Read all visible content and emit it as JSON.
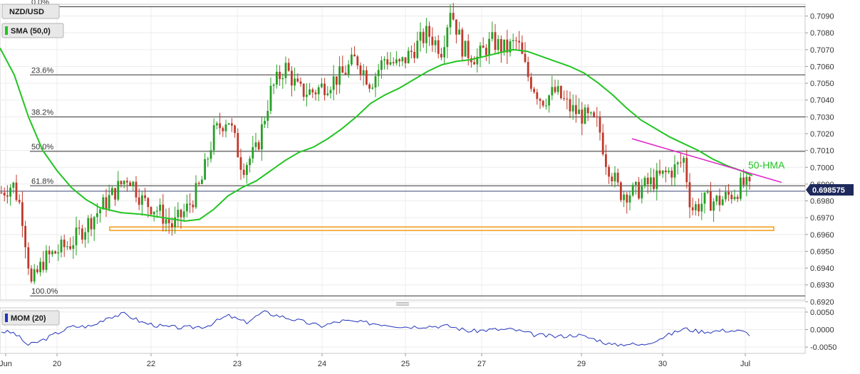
{
  "chart_data": {
    "type": "candlestick",
    "symbol": "NZD/USD",
    "indicators": {
      "overlay_badge": "SMA (50,0)",
      "overlay_annotation": "50-HMA",
      "momentum_badge": "MOM (20)"
    },
    "current_price": "0.698575",
    "y_axis_ticks": [
      "0.7090",
      "0.7080",
      "0.7070",
      "0.7060",
      "0.7050",
      "0.7040",
      "0.7030",
      "0.7020",
      "0.7010",
      "0.7000",
      "0.6990",
      "0.6980",
      "0.6970",
      "0.6960",
      "0.6950",
      "0.6940",
      "0.6930",
      "0.6920"
    ],
    "y_axis_values": [
      0.709,
      0.708,
      0.707,
      0.706,
      0.705,
      0.704,
      0.703,
      0.702,
      0.701,
      0.7,
      0.699,
      0.698,
      0.697,
      0.696,
      0.695,
      0.694,
      0.693,
      0.692
    ],
    "ylim": [
      0.6921,
      0.7097
    ],
    "x_axis_ticks": [
      "Jun",
      "20",
      "22",
      "23",
      "24",
      "25",
      "27",
      "29",
      "30",
      "Jul"
    ],
    "fibonacci": [
      {
        "label": "0.0%",
        "value": 0.70955
      },
      {
        "label": "23.6%",
        "value": 0.7055
      },
      {
        "label": "38.2%",
        "value": 0.703
      },
      {
        "label": "50.0%",
        "value": 0.70095
      },
      {
        "label": "61.8%",
        "value": 0.6989
      },
      {
        "label": "100.0%",
        "value": 0.69235
      }
    ],
    "support_zone": {
      "from": 0.69645,
      "to": 0.69665
    },
    "trendline": {
      "from": 0.7017,
      "to": 0.6991
    },
    "momentum_ticks": [
      "0.0050",
      "0.0000",
      "-0.0050"
    ],
    "momentum_values": [
      0.005,
      0.0,
      -0.005
    ],
    "momentum_ylim": [
      -0.0068,
      0.0062
    ],
    "grid": true,
    "colors": {
      "bull": "#26a026",
      "bear": "#c0392b",
      "sma": "#22c422",
      "trendline": "#e020c8",
      "support": "#f39c12",
      "momentum": "#2233bb",
      "price_tag": "#1e2a5c"
    }
  }
}
